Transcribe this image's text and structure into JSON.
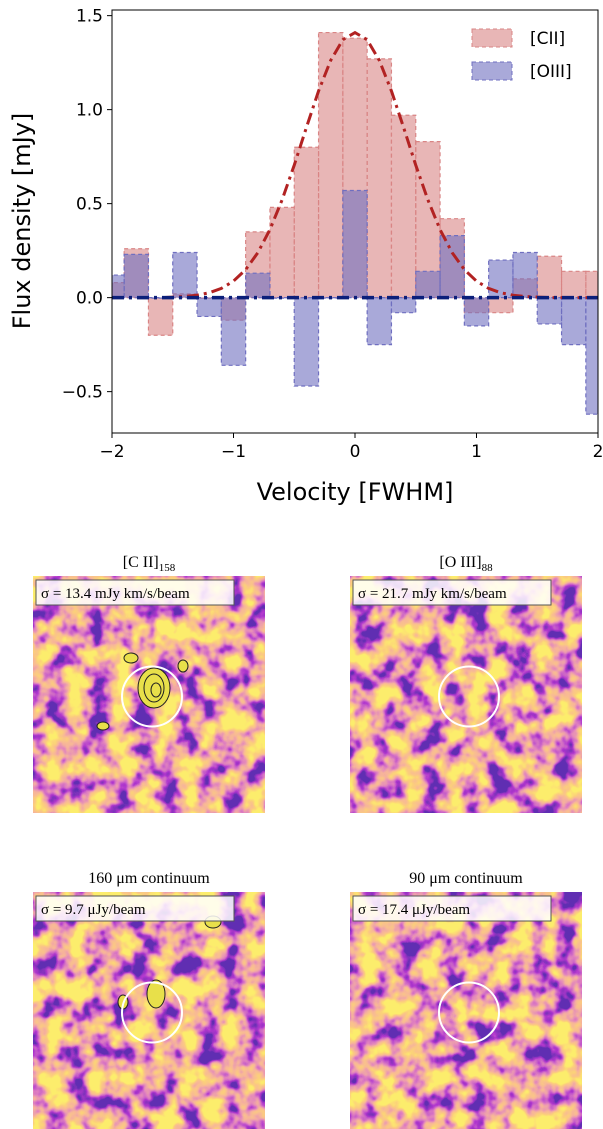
{
  "chart_data": {
    "type": "histogram",
    "xlabel": "Velocity [FWHM]",
    "ylabel": "Flux density [mJy]",
    "bins": [
      -2.1,
      -1.9,
      -1.7,
      -1.5,
      -1.3,
      -1.1,
      -0.9,
      -0.7,
      -0.5,
      -0.3,
      -0.1,
      0.1,
      0.3,
      0.5,
      0.7,
      0.9,
      1.1,
      1.3,
      1.5,
      1.7,
      1.9,
      2.1
    ],
    "series": [
      {
        "name": "[CII]",
        "color": "#d98585",
        "values": [
          0.08,
          0.26,
          -0.2,
          0.02,
          0.0,
          -0.12,
          0.35,
          0.48,
          0.8,
          1.41,
          1.38,
          1.27,
          0.97,
          0.83,
          0.42,
          -0.08,
          -0.08,
          0.1,
          0.22,
          0.14,
          0.14
        ]
      },
      {
        "name": "[OIII]",
        "color": "#6f6fc0",
        "values": [
          0.12,
          0.23,
          0.0,
          0.24,
          -0.1,
          -0.36,
          0.13,
          0.0,
          -0.47,
          0.0,
          0.57,
          -0.25,
          -0.08,
          0.14,
          0.33,
          -0.15,
          0.2,
          0.24,
          -0.14,
          -0.25,
          -0.62
        ]
      }
    ],
    "fit": {
      "color": "#b22222",
      "x": [
        -2,
        -1.9,
        -1.8,
        -1.7,
        -1.6,
        -1.5,
        -1.4,
        -1.3,
        -1.2,
        -1.1,
        -1,
        -0.9,
        -0.8,
        -0.7,
        -0.6,
        -0.5,
        -0.4,
        -0.3,
        -0.2,
        -0.1,
        0,
        0.1,
        0.2,
        0.3,
        0.4,
        0.5,
        0.6,
        0.7,
        0.8,
        0.9,
        1,
        1.1,
        1.2,
        1.3,
        1.4,
        1.5,
        1.6,
        1.7,
        1.8,
        1.9,
        2
      ],
      "values": [
        0,
        0,
        0,
        0,
        0,
        0.003,
        0.006,
        0.013,
        0.026,
        0.049,
        0.088,
        0.149,
        0.239,
        0.362,
        0.52,
        0.705,
        0.905,
        1.099,
        1.262,
        1.372,
        1.41,
        1.372,
        1.262,
        1.099,
        0.905,
        0.705,
        0.52,
        0.362,
        0.239,
        0.149,
        0.088,
        0.049,
        0.026,
        0.013,
        0.006,
        0.003,
        0,
        0,
        0,
        0,
        0
      ]
    },
    "hline": {
      "value": 0,
      "color": "#0b1f7a"
    },
    "xlim": [
      -2,
      2
    ],
    "xticks": [
      {
        "value": -2,
        "label": "−2"
      },
      {
        "value": -1,
        "label": "−1"
      },
      0,
      1,
      2
    ],
    "ylim": [
      -0.72,
      1.53
    ],
    "yticks": [
      {
        "value": -0.5,
        "label": "−0.5"
      },
      {
        "value": 0,
        "label": "0.0"
      },
      0.5,
      {
        "value": 1,
        "label": "1.0"
      },
      1.5
    ],
    "legend": "upper right"
  },
  "panels": [
    {
      "title": "[C II]",
      "sub": "158",
      "sigma": "σ = 13.4 mJy km/s/beam"
    },
    {
      "title": "[O III]",
      "sub": "88",
      "sigma": "σ = 21.7 mJy km/s/beam"
    },
    {
      "title": "160 μm continuum",
      "sigma": "σ = 9.7 μJy/beam"
    },
    {
      "title": "90 μm continuum",
      "sigma": "σ = 17.4 μJy/beam"
    }
  ]
}
